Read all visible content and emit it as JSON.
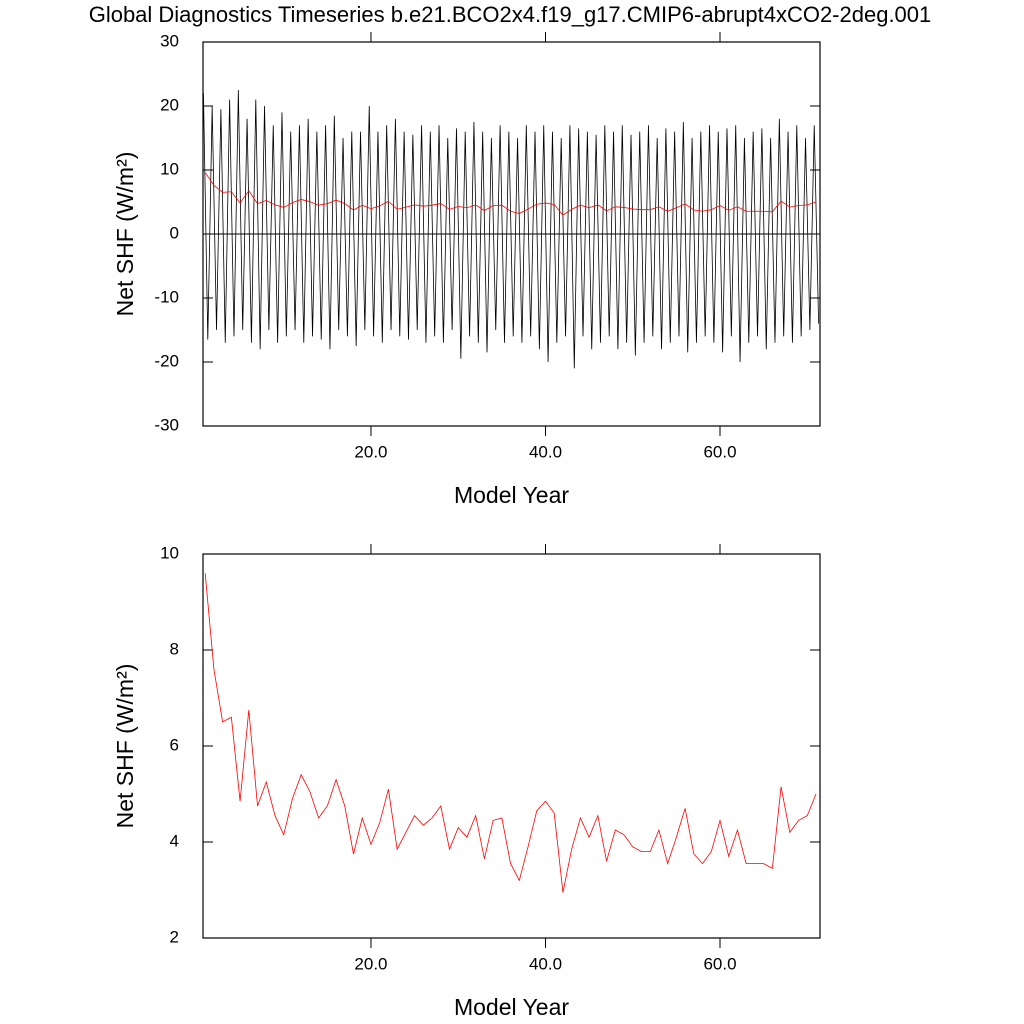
{
  "title": "Global Diagnostics Timeseries b.e21.BCO2x4.f19_g17.CMIP6-abrupt4xCO2-2deg.001",
  "chart_data": [
    {
      "type": "line",
      "xlabel": "Model Year",
      "ylabel": "Net SHF (W/m²)",
      "xlim": [
        0.75,
        71.46
      ],
      "ylim": [
        -30,
        30
      ],
      "xticks": [
        {
          "value": 20,
          "label": "20.0"
        },
        {
          "value": 40,
          "label": "40.0"
        },
        {
          "value": 60,
          "label": "60.0"
        }
      ],
      "yticks": [
        -30,
        -20,
        -10,
        0,
        10,
        20,
        30
      ],
      "reference_line": 0,
      "series": [
        {
          "color": "#000000",
          "x": [
            0.8,
            1.3,
            1.8,
            2.3,
            2.8,
            3.3,
            3.8,
            4.3,
            4.8,
            5.3,
            5.8,
            6.3,
            6.8,
            7.3,
            7.8,
            8.3,
            8.8,
            9.3,
            9.8,
            10.3,
            10.8,
            11.3,
            11.8,
            12.3,
            12.8,
            13.3,
            13.8,
            14.3,
            14.8,
            15.3,
            15.8,
            16.3,
            16.8,
            17.3,
            17.8,
            18.3,
            18.8,
            19.3,
            19.8,
            20.3,
            20.8,
            21.3,
            21.8,
            22.3,
            22.8,
            23.3,
            23.8,
            24.3,
            24.8,
            25.3,
            25.8,
            26.3,
            26.8,
            27.3,
            27.8,
            28.3,
            28.8,
            29.3,
            29.8,
            30.3,
            30.8,
            31.3,
            31.8,
            32.3,
            32.8,
            33.3,
            33.8,
            34.3,
            34.8,
            35.3,
            35.8,
            36.3,
            36.8,
            37.3,
            37.8,
            38.3,
            38.8,
            39.3,
            39.8,
            40.3,
            40.8,
            41.3,
            41.8,
            42.3,
            42.8,
            43.3,
            43.8,
            44.3,
            44.8,
            45.3,
            45.8,
            46.3,
            46.8,
            47.3,
            47.8,
            48.3,
            48.8,
            49.3,
            49.8,
            50.3,
            50.8,
            51.3,
            51.8,
            52.3,
            52.8,
            53.3,
            53.8,
            54.3,
            54.8,
            55.3,
            55.8,
            56.3,
            56.8,
            57.3,
            57.8,
            58.3,
            58.8,
            59.3,
            59.8,
            60.3,
            60.8,
            61.3,
            61.8,
            62.3,
            62.8,
            63.3,
            63.8,
            64.3,
            64.8,
            65.3,
            65.8,
            66.3,
            66.8,
            67.3,
            67.8,
            68.3,
            68.8,
            69.3,
            69.8,
            70.3,
            70.8,
            71.3
          ],
          "values": [
            22,
            -16.5,
            20,
            -15,
            19.5,
            -17,
            21,
            -16,
            22.5,
            -15,
            18,
            -17,
            21,
            -18,
            20,
            -15,
            17,
            -17,
            19,
            -16,
            16,
            -15,
            17,
            -17,
            18,
            -16,
            16,
            -16.5,
            17,
            -18,
            18.5,
            -15,
            15,
            -16,
            16,
            -17.5,
            16,
            -15,
            20,
            -16,
            16,
            -17,
            17,
            -15,
            18,
            -16,
            16,
            -16.5,
            15.5,
            -15,
            17,
            -17,
            16,
            -16,
            17,
            -17,
            15,
            -15,
            16.5,
            -19.5,
            16,
            -16,
            17.5,
            -17,
            16,
            -18.5,
            15,
            -15,
            17,
            -17,
            16,
            -16,
            15,
            -17,
            17,
            -16,
            16,
            -18,
            17,
            -20,
            16,
            -17,
            15,
            -16,
            17,
            -21,
            16.5,
            -16,
            16,
            -18,
            15.5,
            -17,
            17,
            -16,
            16,
            -18,
            17,
            -17,
            15.5,
            -19,
            16,
            -17,
            17,
            -16,
            15,
            -18,
            16.5,
            -17,
            16,
            -16,
            17.5,
            -18.5,
            15,
            -17,
            16,
            -16,
            17,
            -17,
            16,
            -18.5,
            16.5,
            -16,
            17,
            -20,
            15,
            -17,
            16,
            -16,
            16.5,
            -18,
            15,
            -17,
            18,
            -16,
            16,
            -17,
            17,
            -16,
            15,
            -15,
            17,
            -14
          ]
        },
        {
          "color": "#ff0000",
          "x": [
            1,
            2,
            3,
            4,
            5,
            6,
            7,
            8,
            9,
            10,
            11,
            12,
            13,
            14,
            15,
            16,
            17,
            18,
            19,
            20,
            21,
            22,
            23,
            24,
            25,
            26,
            27,
            28,
            29,
            30,
            31,
            32,
            33,
            34,
            35,
            36,
            37,
            38,
            39,
            40,
            41,
            42,
            43,
            44,
            45,
            46,
            47,
            48,
            49,
            50,
            51,
            52,
            53,
            54,
            55,
            56,
            57,
            58,
            59,
            60,
            61,
            62,
            63,
            64,
            65,
            66,
            67,
            68,
            69,
            70,
            71
          ],
          "values": [
            9.6,
            7.6,
            6.5,
            6.6,
            4.85,
            6.75,
            4.75,
            5.25,
            4.55,
            4.15,
            4.9,
            5.4,
            5.05,
            4.5,
            4.75,
            5.3,
            4.75,
            3.75,
            4.5,
            3.95,
            4.4,
            5.1,
            3.85,
            4.2,
            4.55,
            4.35,
            4.5,
            4.75,
            3.85,
            4.3,
            4.1,
            4.55,
            3.65,
            4.45,
            4.5,
            3.55,
            3.2,
            3.9,
            4.65,
            4.85,
            4.6,
            2.95,
            3.85,
            4.5,
            4.1,
            4.55,
            3.6,
            4.25,
            4.15,
            3.9,
            3.8,
            3.8,
            4.25,
            3.55,
            4.1,
            4.7,
            3.75,
            3.55,
            3.8,
            4.45,
            3.7,
            4.25,
            3.55,
            3.55,
            3.55,
            3.45,
            5.15,
            4.2,
            4.45,
            4.55,
            5.0
          ]
        }
      ]
    },
    {
      "type": "line",
      "xlabel": "Model Year",
      "ylabel": "Net SHF (W/m²)",
      "xlim": [
        0.75,
        71.46
      ],
      "ylim": [
        2,
        10
      ],
      "xticks": [
        {
          "value": 20,
          "label": "20.0"
        },
        {
          "value": 40,
          "label": "40.0"
        },
        {
          "value": 60,
          "label": "60.0"
        }
      ],
      "yticks": [
        2,
        4,
        6,
        8,
        10
      ],
      "series": [
        {
          "color": "#ff0000",
          "x": [
            1,
            2,
            3,
            4,
            5,
            6,
            7,
            8,
            9,
            10,
            11,
            12,
            13,
            14,
            15,
            16,
            17,
            18,
            19,
            20,
            21,
            22,
            23,
            24,
            25,
            26,
            27,
            28,
            29,
            30,
            31,
            32,
            33,
            34,
            35,
            36,
            37,
            38,
            39,
            40,
            41,
            42,
            43,
            44,
            45,
            46,
            47,
            48,
            49,
            50,
            51,
            52,
            53,
            54,
            55,
            56,
            57,
            58,
            59,
            60,
            61,
            62,
            63,
            64,
            65,
            66,
            67,
            68,
            69,
            70,
            71
          ],
          "values": [
            9.6,
            7.6,
            6.5,
            6.6,
            4.85,
            6.75,
            4.75,
            5.25,
            4.55,
            4.15,
            4.9,
            5.4,
            5.05,
            4.5,
            4.75,
            5.3,
            4.75,
            3.75,
            4.5,
            3.95,
            4.4,
            5.1,
            3.85,
            4.2,
            4.55,
            4.35,
            4.5,
            4.75,
            3.85,
            4.3,
            4.1,
            4.55,
            3.65,
            4.45,
            4.5,
            3.55,
            3.2,
            3.9,
            4.65,
            4.85,
            4.6,
            2.95,
            3.85,
            4.5,
            4.1,
            4.55,
            3.6,
            4.25,
            4.15,
            3.9,
            3.8,
            3.8,
            4.25,
            3.55,
            4.1,
            4.7,
            3.75,
            3.55,
            3.8,
            4.45,
            3.7,
            4.25,
            3.55,
            3.55,
            3.55,
            3.45,
            5.15,
            4.2,
            4.45,
            4.55,
            5.0
          ]
        }
      ]
    }
  ]
}
